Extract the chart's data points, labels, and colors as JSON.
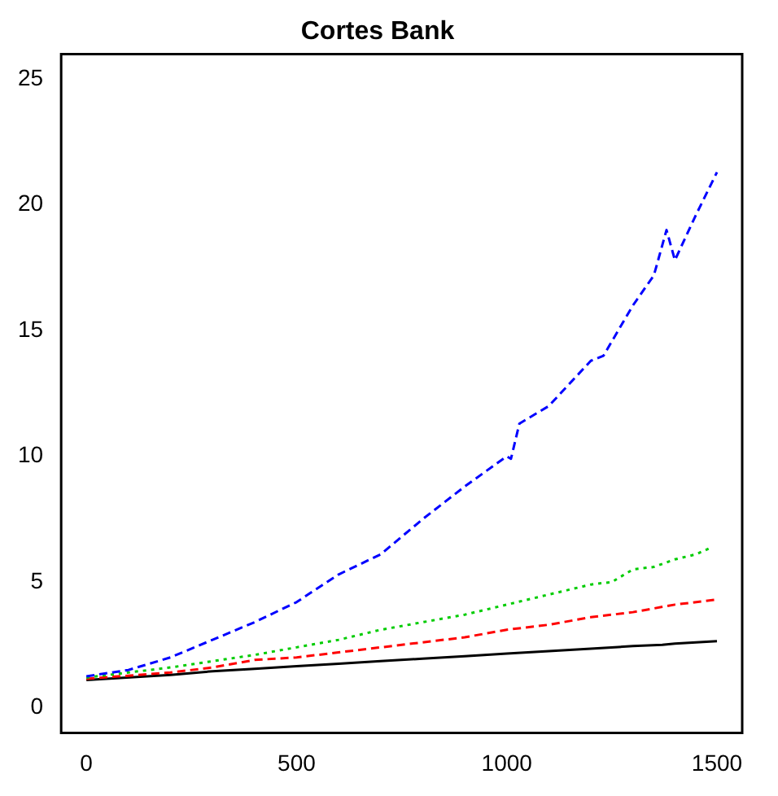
{
  "chart_data": {
    "type": "line",
    "title": "Cortes Bank",
    "xlim": [
      -60,
      1560
    ],
    "ylim": [
      -1,
      26
    ],
    "xticks": [
      0,
      500,
      1000,
      1500
    ],
    "yticks": [
      0,
      5,
      10,
      15,
      20,
      25
    ],
    "grid": false,
    "legend": false,
    "marker": "none",
    "series": [
      {
        "color": "#0000ff",
        "line_style": "dashed",
        "x": [
          0,
          100,
          200,
          300,
          400,
          500,
          600,
          700,
          800,
          900,
          1000,
          1010,
          1030,
          1100,
          1200,
          1230,
          1300,
          1350,
          1380,
          1400,
          1450,
          1500
        ],
        "values": [
          1.25,
          1.5,
          2.0,
          2.7,
          3.4,
          4.2,
          5.3,
          6.1,
          7.5,
          8.8,
          10.0,
          9.9,
          11.3,
          12.0,
          13.8,
          14.0,
          16.0,
          17.2,
          19.0,
          17.8,
          19.6,
          21.3
        ]
      },
      {
        "color": "#00cc00",
        "line_style": "dotted",
        "x": [
          0,
          200,
          400,
          500,
          600,
          700,
          800,
          900,
          1000,
          1100,
          1200,
          1250,
          1300,
          1350,
          1400,
          1450,
          1490
        ],
        "values": [
          1.2,
          1.6,
          2.1,
          2.4,
          2.7,
          3.1,
          3.4,
          3.7,
          4.1,
          4.5,
          4.9,
          5.0,
          5.5,
          5.6,
          5.9,
          6.1,
          6.4
        ]
      },
      {
        "color": "#ff0000",
        "line_style": "dashed",
        "x": [
          0,
          200,
          300,
          400,
          500,
          600,
          700,
          800,
          900,
          1000,
          1100,
          1200,
          1300,
          1400,
          1500
        ],
        "values": [
          1.15,
          1.4,
          1.6,
          1.9,
          2.0,
          2.2,
          2.4,
          2.6,
          2.8,
          3.1,
          3.3,
          3.6,
          3.8,
          4.1,
          4.3
        ]
      },
      {
        "color": "#000000",
        "line_style": "solid",
        "x": [
          0,
          200,
          300,
          400,
          500,
          600,
          700,
          800,
          900,
          1000,
          1100,
          1200,
          1300,
          1370,
          1400,
          1500
        ],
        "values": [
          1.1,
          1.3,
          1.45,
          1.55,
          1.65,
          1.75,
          1.85,
          1.95,
          2.05,
          2.15,
          2.25,
          2.35,
          2.45,
          2.5,
          2.55,
          2.65
        ]
      }
    ]
  }
}
